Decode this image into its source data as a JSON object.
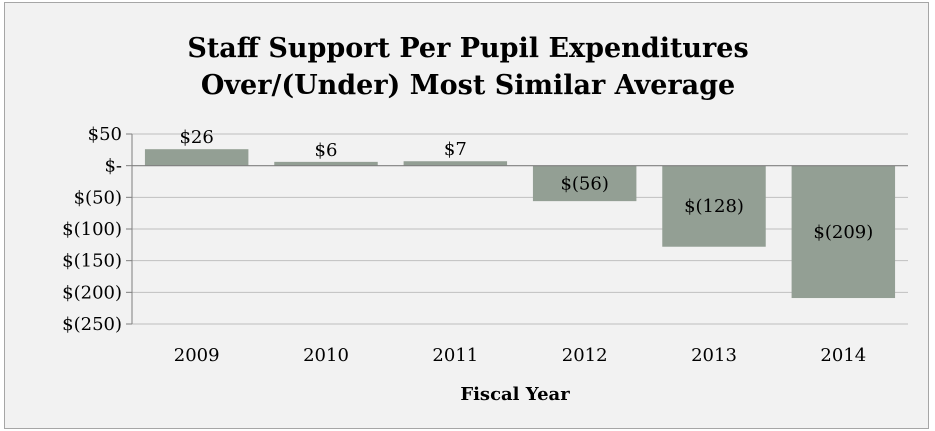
{
  "chart_data": {
    "type": "bar",
    "title": "Staff Support Per Pupil Expenditures",
    "subtitle": "Over/(Under)  Most Similar Average",
    "xlabel": "Fiscal Year",
    "ylabel": "",
    "categories": [
      "2009",
      "2010",
      "2011",
      "2012",
      "2013",
      "2014"
    ],
    "values": [
      26,
      6,
      7,
      -56,
      -128,
      -209
    ],
    "data_labels": [
      "$26",
      "$6",
      "$7",
      "$(56)",
      "$(128)",
      "$(209)"
    ],
    "ylim": [
      -250,
      50
    ],
    "yticks": [
      {
        "value": 50,
        "label": "$50"
      },
      {
        "value": 0,
        "label": "$-"
      },
      {
        "value": -50,
        "label": "$(50)"
      },
      {
        "value": -100,
        "label": "$(100)"
      },
      {
        "value": -150,
        "label": "$(150)"
      },
      {
        "value": -200,
        "label": "$(200)"
      },
      {
        "value": -250,
        "label": "$(250)"
      }
    ],
    "grid": true,
    "legend": "none",
    "colors": {
      "bar": "#939f94",
      "background": "#f2f2f2",
      "gridline": "#bfbfbf",
      "axis": "#7f7f7f"
    }
  }
}
